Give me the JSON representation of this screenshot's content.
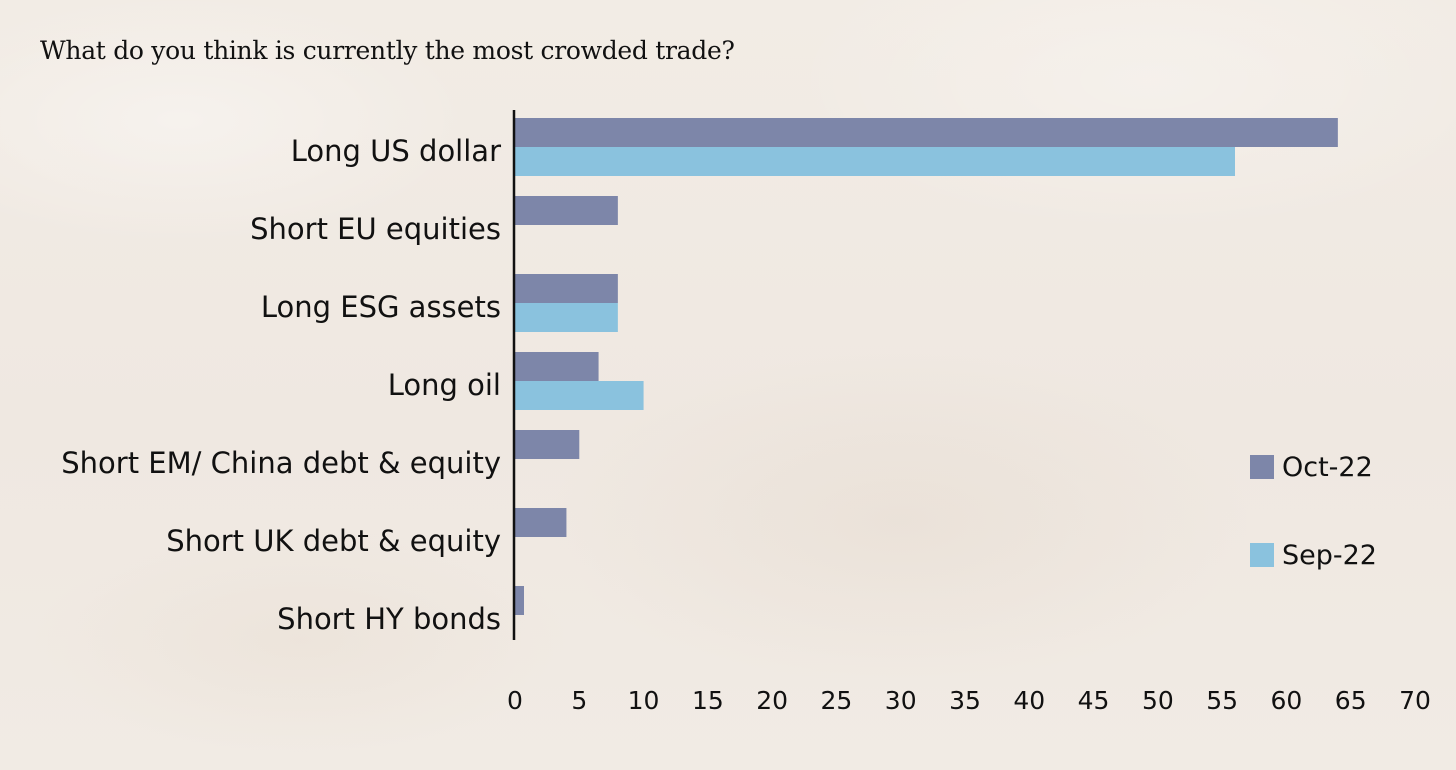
{
  "chart_data": {
    "type": "bar",
    "orientation": "horizontal",
    "title": "What do you think is currently the most crowded trade?",
    "categories": [
      "Long US dollar",
      "Short EU equities",
      "Long ESG assets",
      "Long oil",
      "Short EM/ China debt & equity",
      "Short UK debt & equity",
      "Short HY bonds"
    ],
    "series": [
      {
        "name": "Oct-22",
        "color": "#7d86a9",
        "values": [
          64,
          8,
          8,
          6.5,
          5,
          4,
          0.7
        ]
      },
      {
        "name": "Sep-22",
        "color": "#8ac2de",
        "values": [
          56,
          0,
          8,
          10,
          0,
          0,
          0
        ]
      }
    ],
    "xlim": [
      0,
      70
    ],
    "xticks": [
      "0",
      "5",
      "10",
      "15",
      "20",
      "25",
      "30",
      "35",
      "40",
      "45",
      "50",
      "55",
      "60",
      "65",
      "70"
    ],
    "xlabel": "",
    "ylabel": "",
    "grid": false,
    "legend_position": "right"
  }
}
